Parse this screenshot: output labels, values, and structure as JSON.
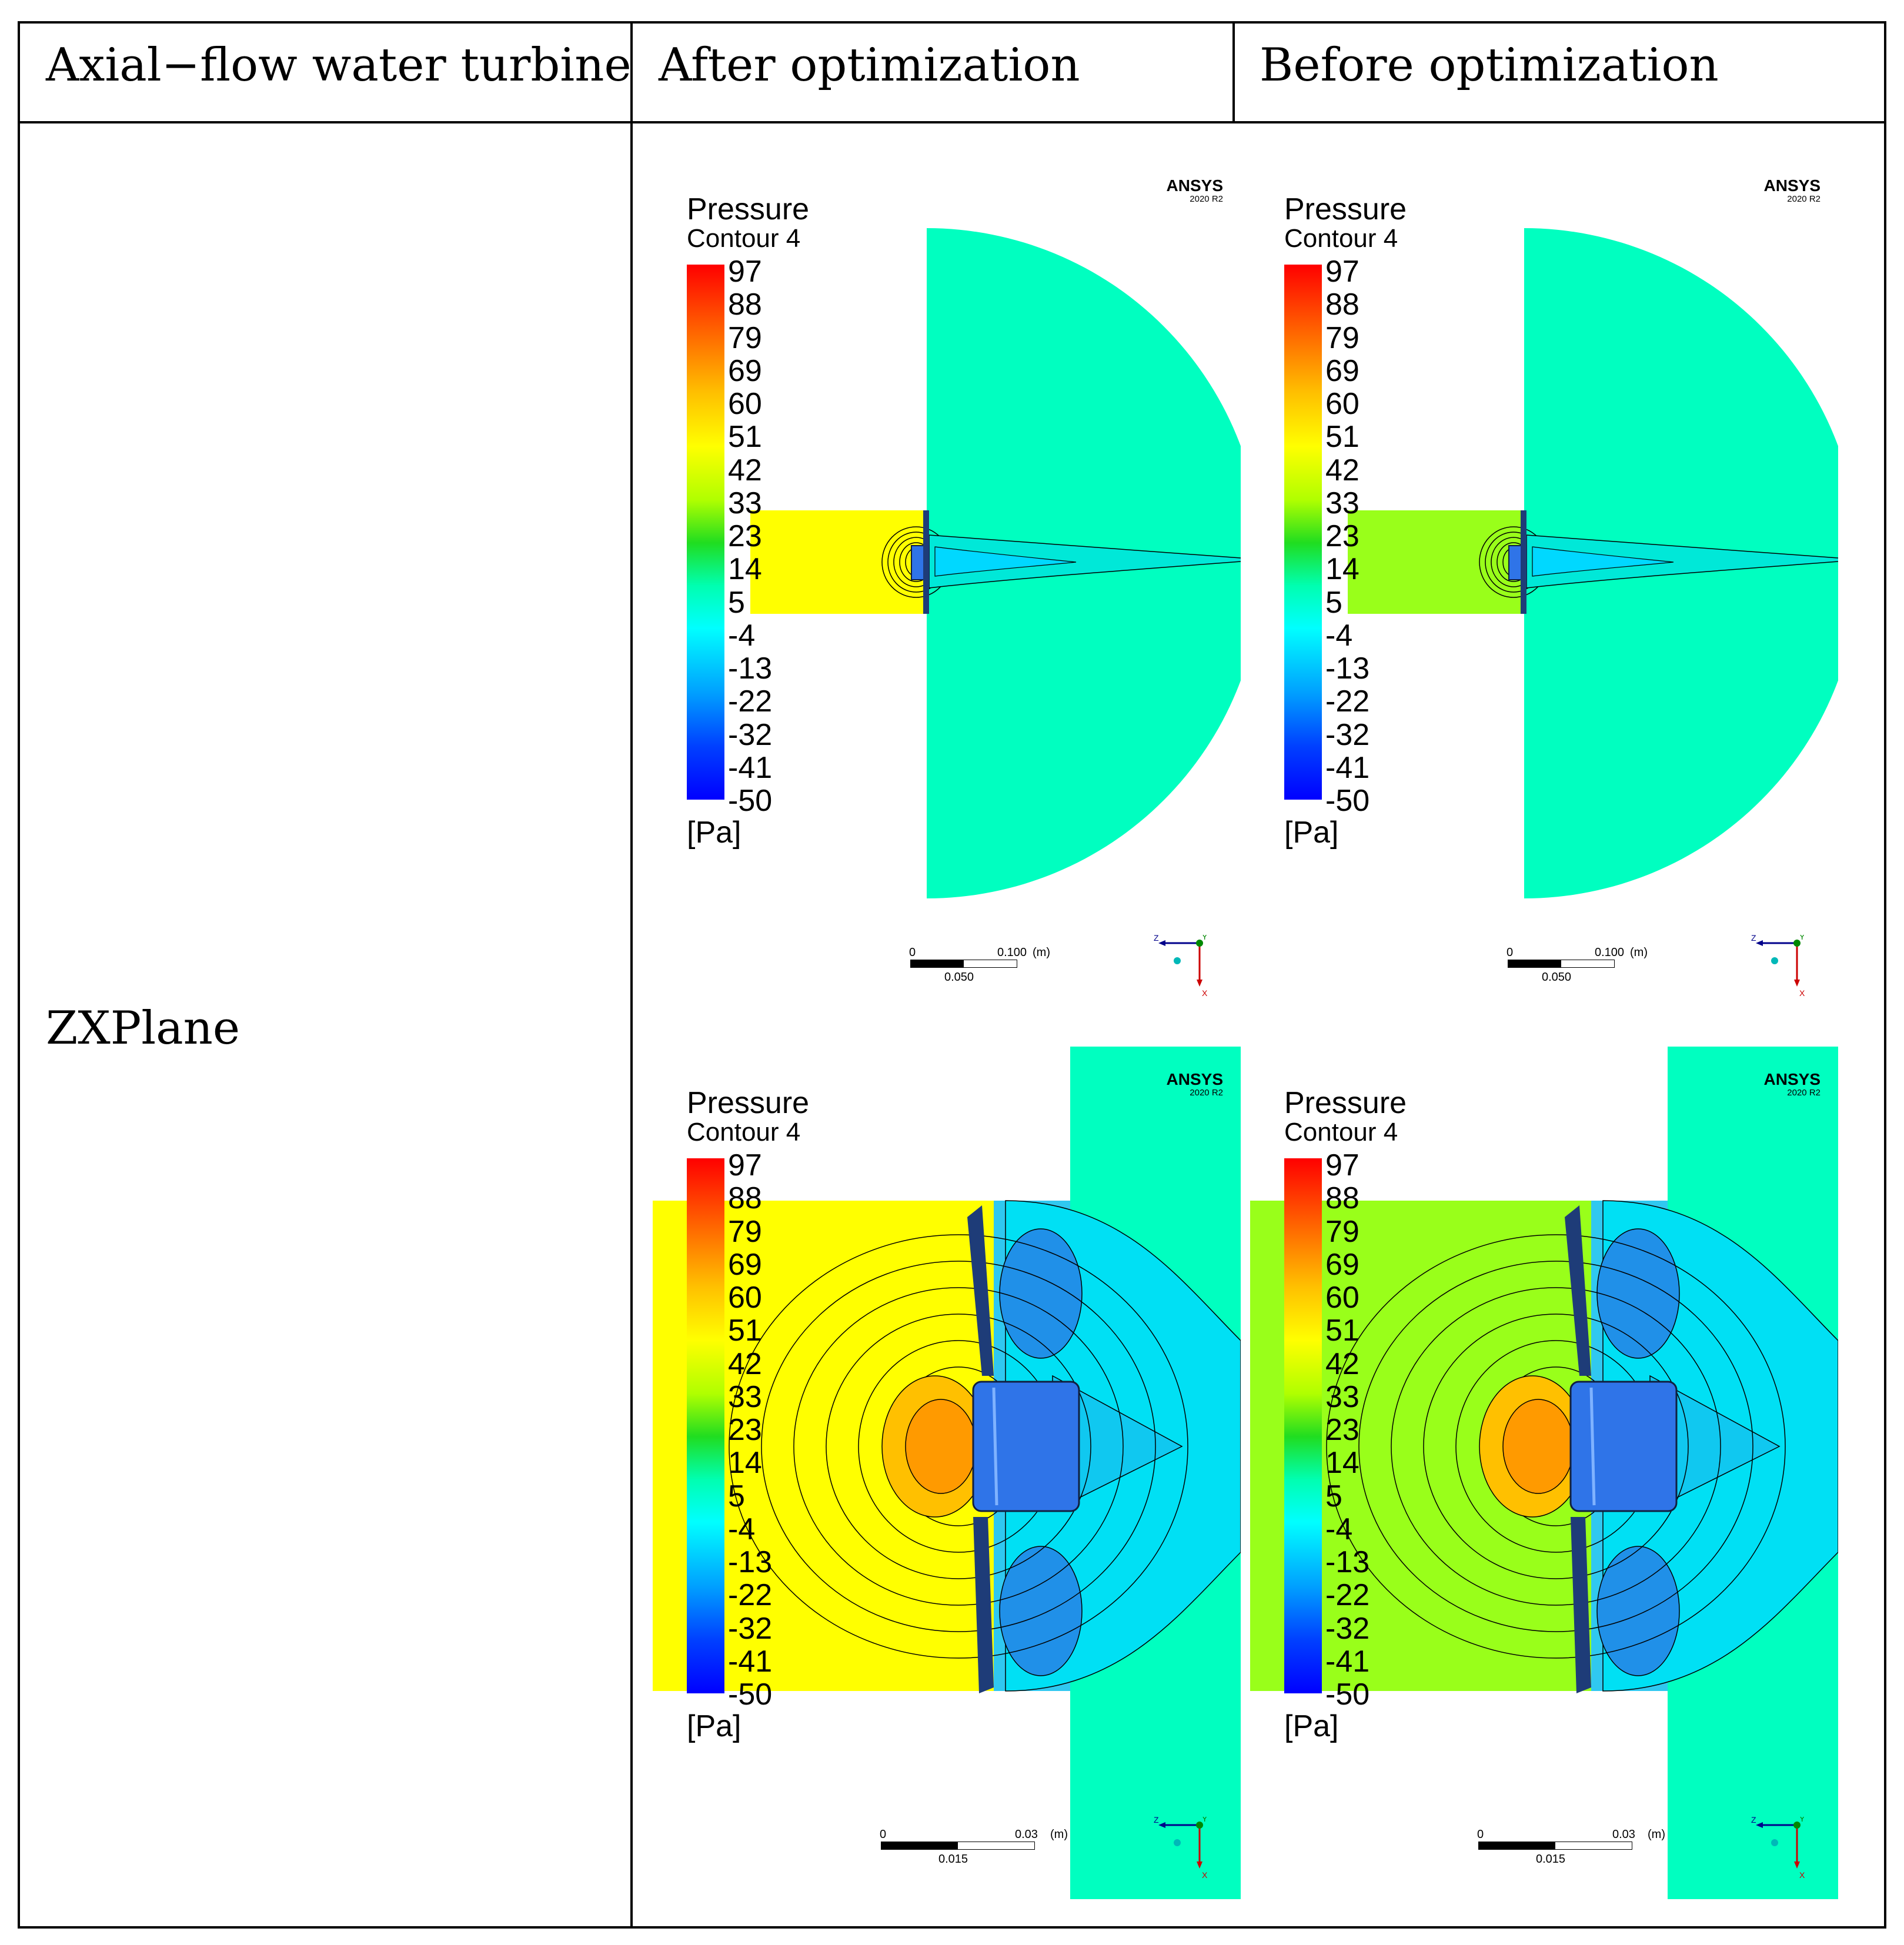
{
  "table": {
    "headers": [
      "Axial−flow water turbine",
      "After optimization",
      "Before optimization"
    ],
    "row_label": "ZXPlane"
  },
  "panels": [
    {
      "id": "after-zoomed-out",
      "column": "After optimization",
      "view": "full",
      "inlet_color": "#ffff00"
    },
    {
      "id": "before-zoomed-out",
      "column": "Before optimization",
      "view": "full",
      "inlet_color": "#99ff1a"
    },
    {
      "id": "after-zoomed-in",
      "column": "After optimization",
      "view": "zoom",
      "inlet_color": "#ffff00"
    },
    {
      "id": "before-zoomed-in",
      "column": "Before optimization",
      "view": "zoom",
      "inlet_color": "#99ff1a"
    }
  ],
  "legend": {
    "title": "Pressure",
    "subtitle": "Contour 4",
    "ticks": [
      "97",
      "88",
      "79",
      "69",
      "60",
      "51",
      "42",
      "33",
      "23",
      "14",
      "5",
      "-4",
      "-13",
      "-22",
      "-32",
      "-41",
      "-50"
    ],
    "unit": "[Pa]"
  },
  "branding": {
    "name": "ANSYS",
    "version": "2020 R2"
  },
  "scalebar_full": {
    "start": "0",
    "end": "0.100",
    "unit": "(m)",
    "mid": "0.050"
  },
  "scalebar_zoom": {
    "start": "0",
    "end": "0.03",
    "unit": "(m)",
    "mid": "0.015"
  },
  "axis_labels": {
    "z": "Z",
    "y": "Y",
    "x": "X"
  },
  "colors": {
    "background_fluid": "#00ffc0",
    "inlet_after": "#ffff00",
    "inlet_before": "#99ff1a",
    "hub": "#2f74e8",
    "blade": "#1e3c78"
  }
}
